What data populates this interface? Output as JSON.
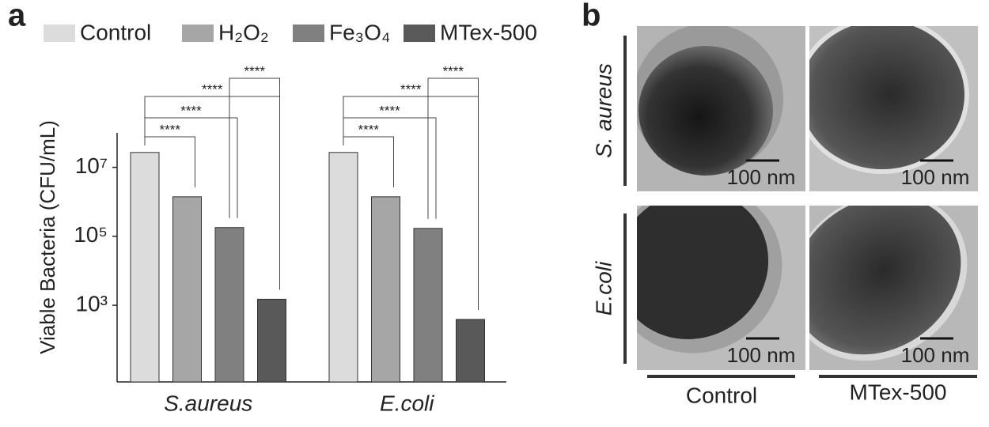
{
  "chart_data": {
    "type": "bar",
    "panel_label": "a",
    "y_label": "Viable Bacteria (CFU/mL)",
    "categories": [
      "S.aureus",
      "E.coli"
    ],
    "series": [
      {
        "name": "Control",
        "color": "#dcdcdc",
        "values": [
          27000000,
          27000000
        ]
      },
      {
        "name": "H₂O₂",
        "color": "#a6a6a6",
        "values": [
          1400000,
          1400000
        ]
      },
      {
        "name": "Fe₃O₄",
        "color": "#808080",
        "values": [
          180000,
          170000
        ]
      },
      {
        "name": "MTex-500",
        "color": "#595959",
        "values": [
          1500,
          390
        ]
      }
    ],
    "log_scale": true,
    "ylim": [
      6,
      100000000
    ],
    "yticks": [
      {
        "value": 1000,
        "label": "10³"
      },
      {
        "value": 100000,
        "label": "10⁵"
      },
      {
        "value": 10000000,
        "label": "10⁷"
      }
    ],
    "annotations": [
      "****",
      "****",
      "****",
      "****",
      "****",
      "****",
      "****",
      "****"
    ]
  },
  "figure_b": {
    "panel_label": "b",
    "rows": [
      "S. aureus",
      "E.coli"
    ],
    "columns": [
      "Control",
      "MTex-500"
    ],
    "scale_bars": [
      "100 nm",
      "100 nm",
      "100 nm",
      "100 nm"
    ]
  }
}
